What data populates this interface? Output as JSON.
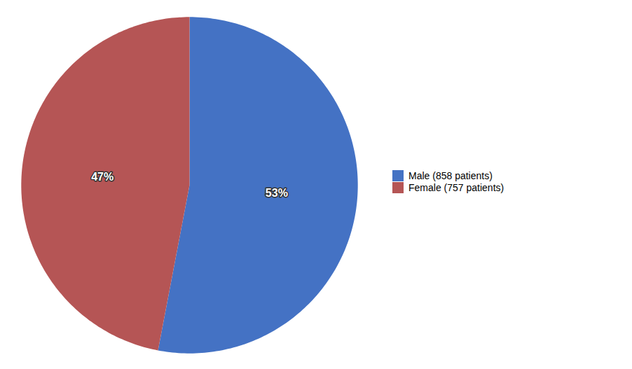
{
  "chart_data": {
    "type": "pie",
    "categories": [
      "Male (858 patients)",
      "Female (757 patients)"
    ],
    "values": [
      53,
      47
    ],
    "value_labels": [
      "53%",
      "47%"
    ],
    "colors": [
      "#4472C4",
      "#B55555"
    ],
    "data_labels": true,
    "legend": "right"
  }
}
